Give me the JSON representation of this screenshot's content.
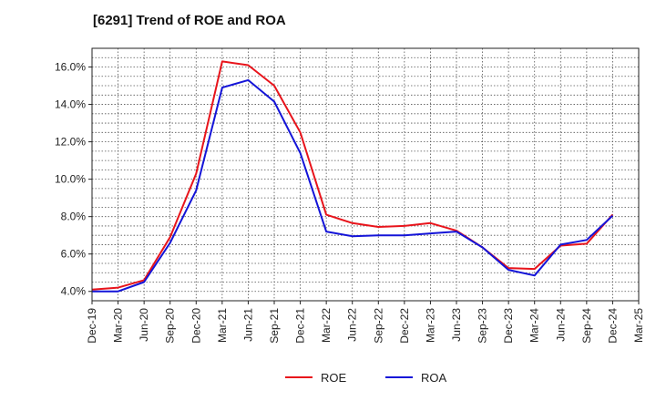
{
  "chart_data": {
    "type": "line",
    "title": "[6291]  Trend of ROE and ROA",
    "xlabel": "",
    "ylabel": "",
    "x": [
      "Dec-19",
      "Mar-20",
      "Jun-20",
      "Sep-20",
      "Dec-20",
      "Mar-21",
      "Jun-21",
      "Sep-21",
      "Dec-21",
      "Mar-22",
      "Jun-22",
      "Sep-22",
      "Dec-22",
      "Mar-23",
      "Jun-23",
      "Sep-23",
      "Dec-23",
      "Mar-24",
      "Jun-24",
      "Sep-24",
      "Dec-24",
      "Mar-25"
    ],
    "ylim": [
      3.5,
      17.0
    ],
    "yticks": [
      4.0,
      6.0,
      8.0,
      10.0,
      12.0,
      14.0,
      16.0
    ],
    "ytick_labels": [
      "4.0%",
      "6.0%",
      "8.0%",
      "10.0%",
      "12.0%",
      "14.0%",
      "16.0%"
    ],
    "grid": true,
    "legend_position": "bottom",
    "series": [
      {
        "name": "ROE",
        "color": "#e8141b",
        "values": [
          4.1,
          4.2,
          4.6,
          6.9,
          10.3,
          16.3,
          16.1,
          15.0,
          12.5,
          8.1,
          7.65,
          7.45,
          7.5,
          7.65,
          7.25,
          6.35,
          5.25,
          5.2,
          6.45,
          6.55,
          8.1,
          null
        ]
      },
      {
        "name": "ROA",
        "color": "#1414d8",
        "values": [
          4.0,
          4.0,
          4.5,
          6.6,
          9.4,
          14.9,
          15.3,
          14.15,
          11.4,
          7.2,
          6.95,
          7.0,
          7.0,
          7.1,
          7.2,
          6.35,
          5.15,
          4.85,
          6.5,
          6.75,
          8.05,
          null
        ]
      }
    ]
  }
}
